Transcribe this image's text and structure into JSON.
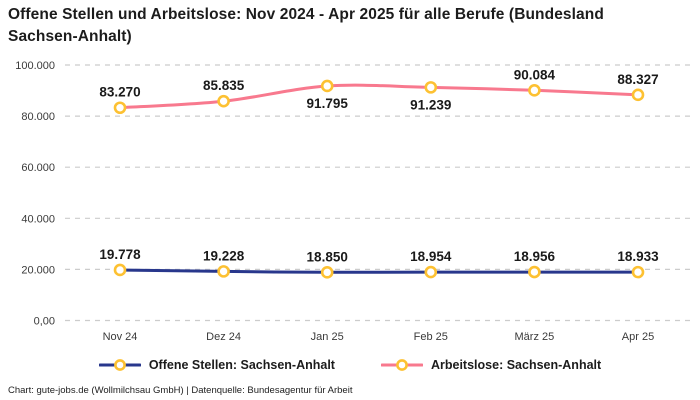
{
  "title": "Offene Stellen und Arbeitslose: Nov 2024 - Apr 2025 für alle Berufe (Bundesland Sachsen-Anhalt)",
  "footer": "Chart: gute-jobs.de (Wollmilchsau GmbH) | Datenquelle: Bundesagentur für Arbeit",
  "colors": {
    "offene_stellen_line": "#28378c",
    "arbeitslose_line": "#f8798e",
    "marker_ring": "#fdc132",
    "marker_fill": "#ffffff",
    "gridline": "#cccccc",
    "axis_text": "#3a3a3a",
    "data_label_text": "#1a1a1a"
  },
  "chart_data": {
    "type": "line",
    "categories": [
      "Nov 24",
      "Dez 24",
      "Jan 25",
      "Feb 25",
      "März 25",
      "Apr 25"
    ],
    "series": [
      {
        "name": "Offene Stellen: Sachsen-Anhalt",
        "values": [
          19778,
          19228,
          18850,
          18954,
          18956,
          18933
        ],
        "labels": [
          "19.778",
          "19.228",
          "18.850",
          "18.954",
          "18.956",
          "18.933"
        ],
        "label_positions": [
          "above",
          "above",
          "above",
          "above",
          "above",
          "above"
        ],
        "color": "#28378c"
      },
      {
        "name": "Arbeitslose: Sachsen-Anhalt",
        "values": [
          83270,
          85835,
          91795,
          91239,
          90084,
          88327
        ],
        "labels": [
          "83.270",
          "85.835",
          "91.795",
          "91.239",
          "90.084",
          "88.327"
        ],
        "label_positions": [
          "above",
          "above",
          "below",
          "below",
          "above",
          "above"
        ],
        "color": "#f8798e"
      }
    ],
    "ylim": [
      0,
      100000
    ],
    "yticks": [
      {
        "value": 0,
        "label": "0,00"
      },
      {
        "value": 20000,
        "label": "20.000"
      },
      {
        "value": 40000,
        "label": "40.000"
      },
      {
        "value": 60000,
        "label": "60.000"
      },
      {
        "value": 80000,
        "label": "80.000"
      },
      {
        "value": 100000,
        "label": "100.000"
      }
    ],
    "grid": true,
    "grid_style": "dashed",
    "legend_position": "bottom",
    "marker": {
      "ring": "#fdc132",
      "fill": "#ffffff"
    }
  }
}
